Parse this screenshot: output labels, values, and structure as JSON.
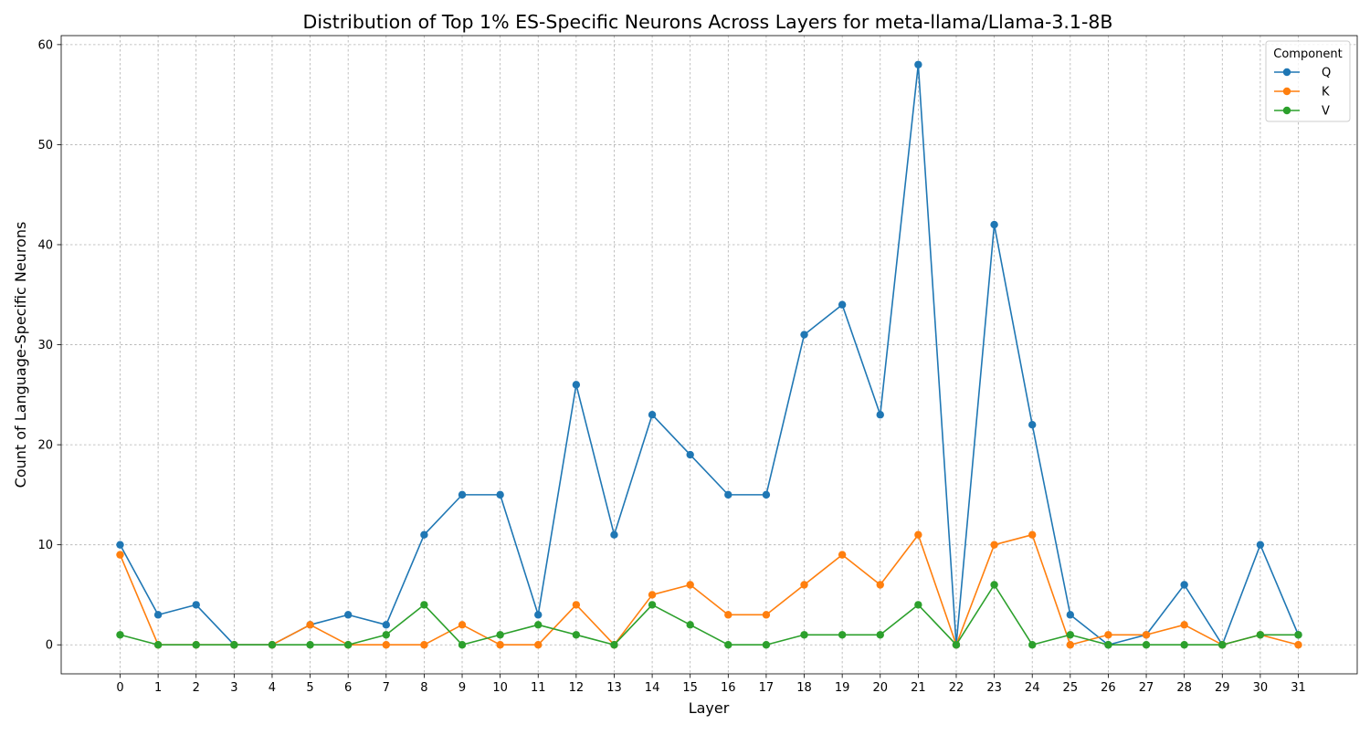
{
  "chart_data": {
    "type": "line",
    "title": "Distribution of Top 1% ES-Specific Neurons Across Layers for meta-llama/Llama-3.1-8B",
    "xlabel": "Layer",
    "ylabel": "Count of Language-Specific Neurons",
    "x": [
      0,
      1,
      2,
      3,
      4,
      5,
      6,
      7,
      8,
      9,
      10,
      11,
      12,
      13,
      14,
      15,
      16,
      17,
      18,
      19,
      20,
      21,
      22,
      23,
      24,
      25,
      26,
      27,
      28,
      29,
      30,
      31
    ],
    "xlim": [
      -1.55,
      32.55
    ],
    "ylim": [
      -2.9,
      60.9
    ],
    "yticks": [
      0,
      10,
      20,
      30,
      40,
      50,
      60
    ],
    "grid": true,
    "legend": {
      "title": "Component",
      "placement": "top-right"
    },
    "series": [
      {
        "name": "Q",
        "color": "#1f77b4",
        "values": [
          10,
          3,
          4,
          0,
          0,
          2,
          3,
          2,
          11,
          15,
          15,
          3,
          26,
          11,
          23,
          19,
          15,
          15,
          31,
          34,
          23,
          58,
          0,
          42,
          22,
          3,
          0,
          1,
          6,
          0,
          10,
          1
        ]
      },
      {
        "name": "K",
        "color": "#ff7f0e",
        "values": [
          9,
          0,
          0,
          0,
          0,
          2,
          0,
          0,
          0,
          2,
          0,
          0,
          4,
          0,
          5,
          6,
          3,
          3,
          6,
          9,
          6,
          11,
          0,
          10,
          11,
          0,
          1,
          1,
          2,
          0,
          1,
          0
        ]
      },
      {
        "name": "V",
        "color": "#2ca02c",
        "values": [
          1,
          0,
          0,
          0,
          0,
          0,
          0,
          1,
          4,
          0,
          1,
          2,
          1,
          0,
          4,
          2,
          0,
          0,
          1,
          1,
          1,
          4,
          0,
          6,
          0,
          1,
          0,
          0,
          0,
          0,
          1,
          1
        ]
      }
    ]
  }
}
